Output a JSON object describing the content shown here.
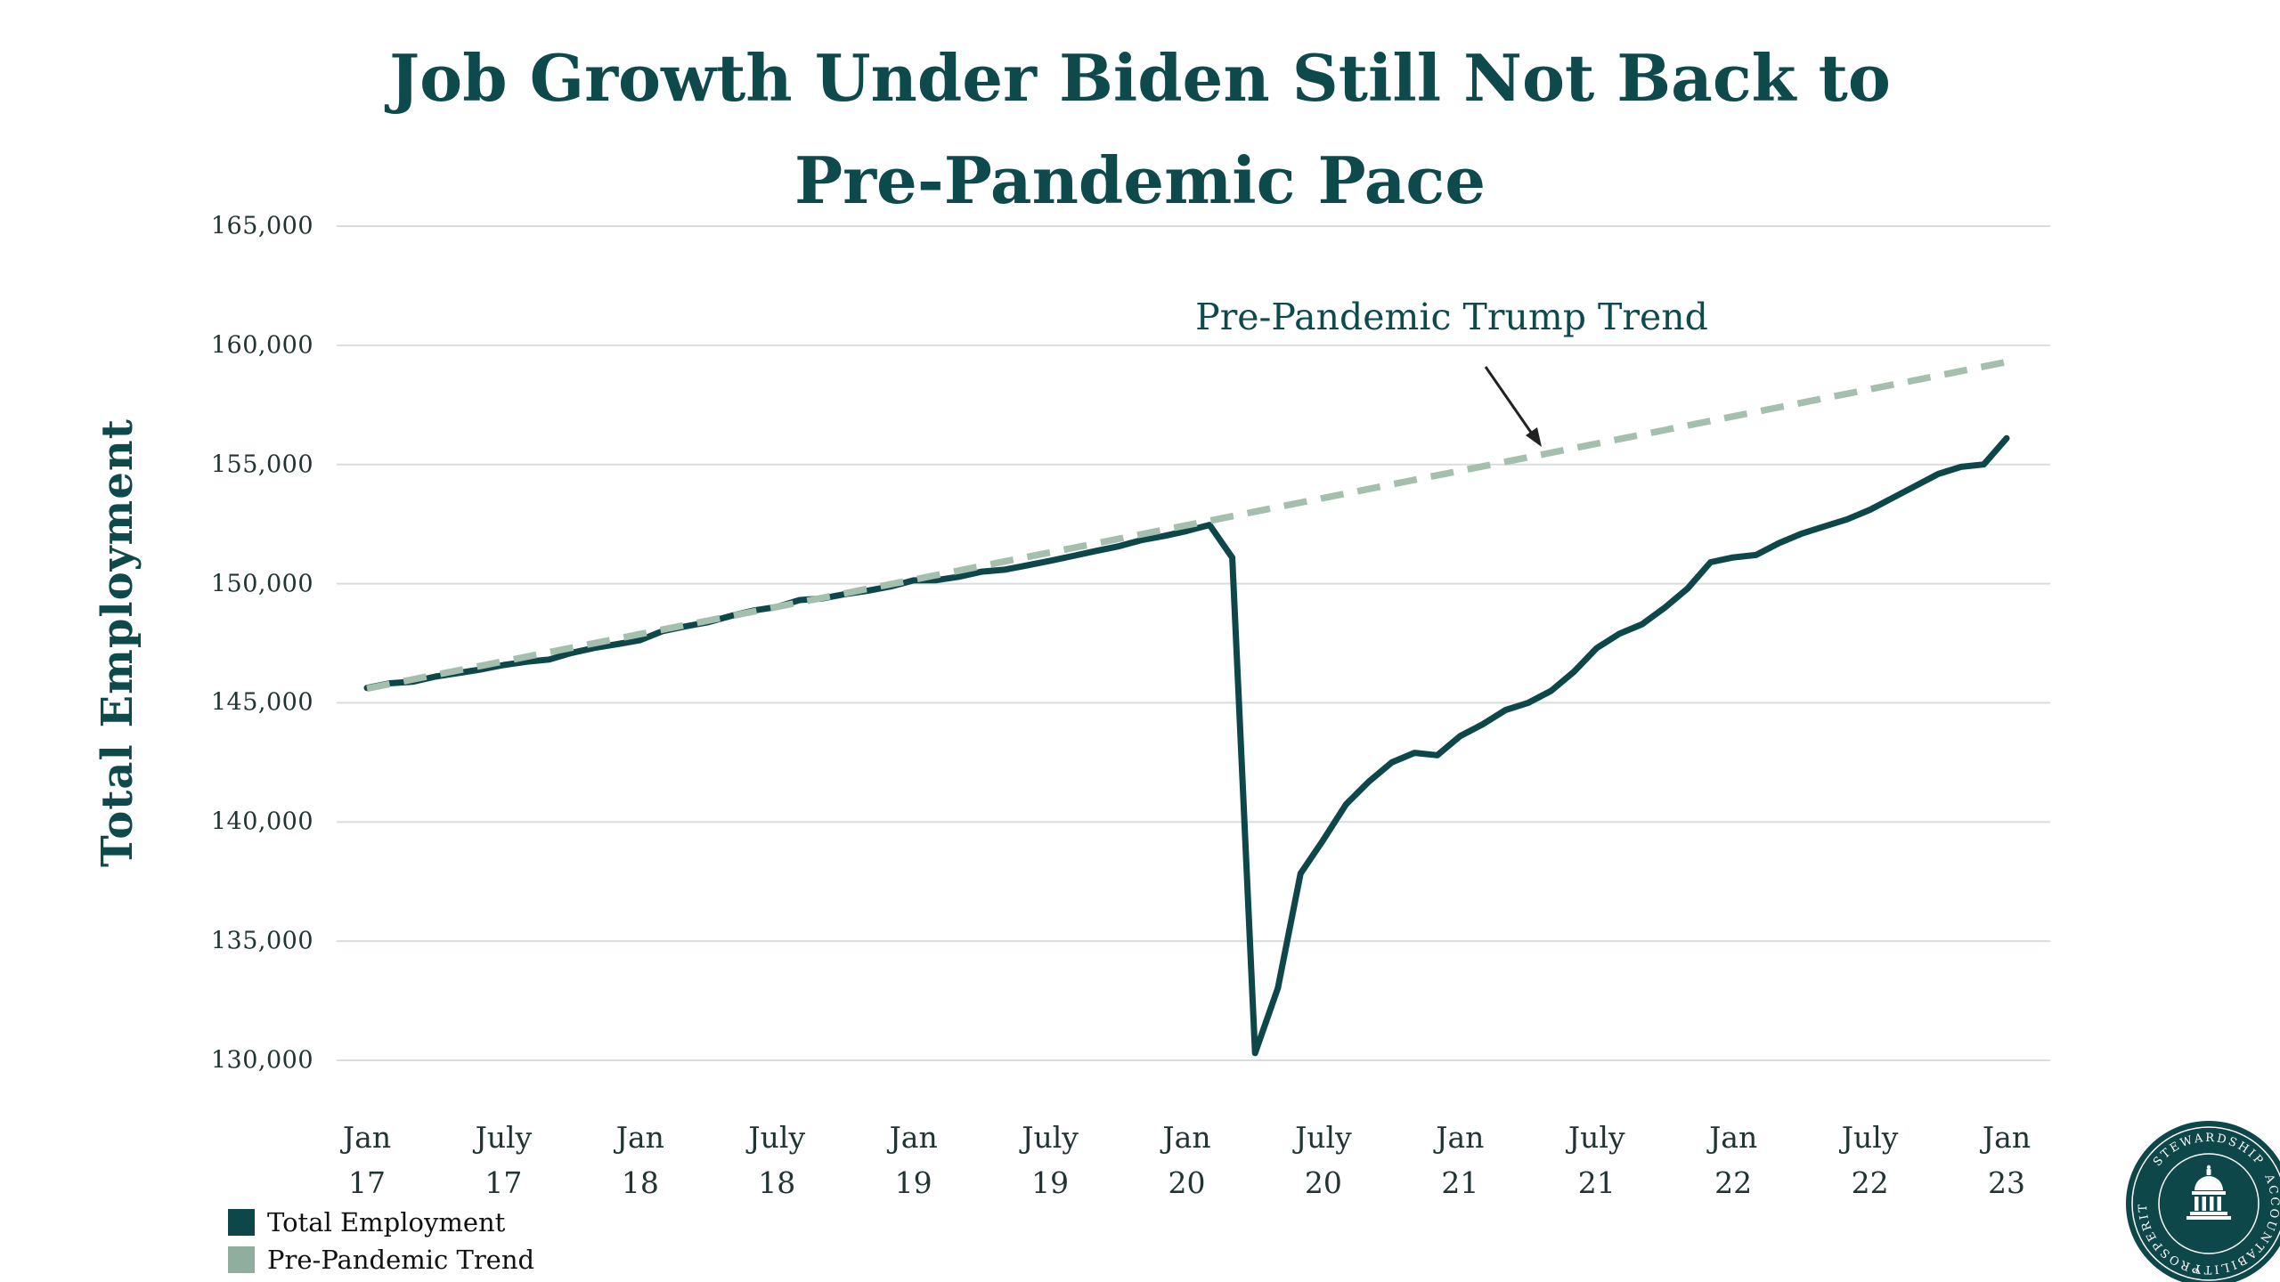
{
  "title": {
    "line1": "Job Growth Under Biden Still Not Back to",
    "line2": "Pre-Pandemic Pace"
  },
  "y_axis": {
    "label": "Total Employment",
    "ticks": [
      "165,000",
      "160,000",
      "155,000",
      "150,000",
      "145,000",
      "140,000",
      "135,000",
      "130,000"
    ],
    "max": 165000,
    "min": 130000,
    "step": 5000
  },
  "x_axis": {
    "ticks": [
      {
        "line1": "Jan",
        "line2": "17"
      },
      {
        "line1": "July",
        "line2": "17"
      },
      {
        "line1": "Jan",
        "line2": "18"
      },
      {
        "line1": "July",
        "line2": "18"
      },
      {
        "line1": "Jan",
        "line2": "19"
      },
      {
        "line1": "July",
        "line2": "19"
      },
      {
        "line1": "Jan",
        "line2": "20"
      },
      {
        "line1": "July",
        "line2": "20"
      },
      {
        "line1": "Jan",
        "line2": "21"
      },
      {
        "line1": "July",
        "line2": "21"
      },
      {
        "line1": "Jan",
        "line2": "22"
      },
      {
        "line1": "July",
        "line2": "22"
      },
      {
        "line1": "Jan",
        "line2": "23"
      }
    ]
  },
  "annotation": {
    "text": "Pre-Pandemic Trump Trend"
  },
  "legend": [
    {
      "label": "Total Employment",
      "color": "#0e4749"
    },
    {
      "label": "Pre-Pandemic Trend",
      "color": "#8fae9d"
    }
  ],
  "logo": {
    "words": [
      "STEWARDSHIP",
      "ACCOUNTABILITY",
      "PROSPERITY"
    ]
  },
  "colors": {
    "accent_teal": "#0e4a4c",
    "sage": "#a4bfae",
    "gridline": "#d9dddd",
    "axis_text": "#223333"
  },
  "chart_data": {
    "type": "line",
    "title": "Job Growth Under Biden Still Not Back to Pre-Pandemic Pace",
    "ylabel": "Total Employment",
    "ylim": [
      130000,
      165000
    ],
    "grid": "horizontal",
    "legend_position": "bottom-left",
    "months": 73,
    "x_start": "Jan 2017",
    "x_end": "Jan 2023",
    "x_tick_labels": [
      "Jan 17",
      "July 17",
      "Jan 18",
      "July 18",
      "Jan 19",
      "July 19",
      "Jan 20",
      "July 20",
      "Jan 21",
      "July 21",
      "Jan 22",
      "July 22",
      "Jan 23"
    ],
    "series": [
      {
        "name": "Total Employment",
        "style": "solid",
        "color": "#0e4749",
        "values": [
          145624,
          145818,
          145881,
          146100,
          146247,
          146398,
          146584,
          146724,
          146817,
          147097,
          147306,
          147462,
          147631,
          148012,
          148210,
          148385,
          148650,
          148875,
          149025,
          149313,
          149380,
          149562,
          149703,
          149884,
          150138,
          150144,
          150291,
          150502,
          150585,
          150768,
          150958,
          151160,
          151368,
          151564,
          151825,
          151998,
          152212,
          152463,
          151090,
          130303,
          133028,
          137841,
          139252,
          140747,
          141700,
          142500,
          142900,
          142800,
          143600,
          144100,
          144700,
          145000,
          145500,
          146300,
          147300,
          147900,
          148300,
          149000,
          149800,
          150900,
          151100,
          151200,
          151700,
          152100,
          152400,
          152700,
          153100,
          153600,
          154100,
          154600,
          154900,
          155000,
          156100
        ]
      },
      {
        "name": "Pre-Pandemic Trend",
        "style": "dashed",
        "color": "#a4bfae",
        "linear": {
          "start": 145600,
          "end": 159300
        }
      }
    ],
    "annotation": {
      "text": "Pre-Pandemic Trump Trend",
      "points_at": "Pre-Pandemic Trend line, mid-2021"
    }
  }
}
